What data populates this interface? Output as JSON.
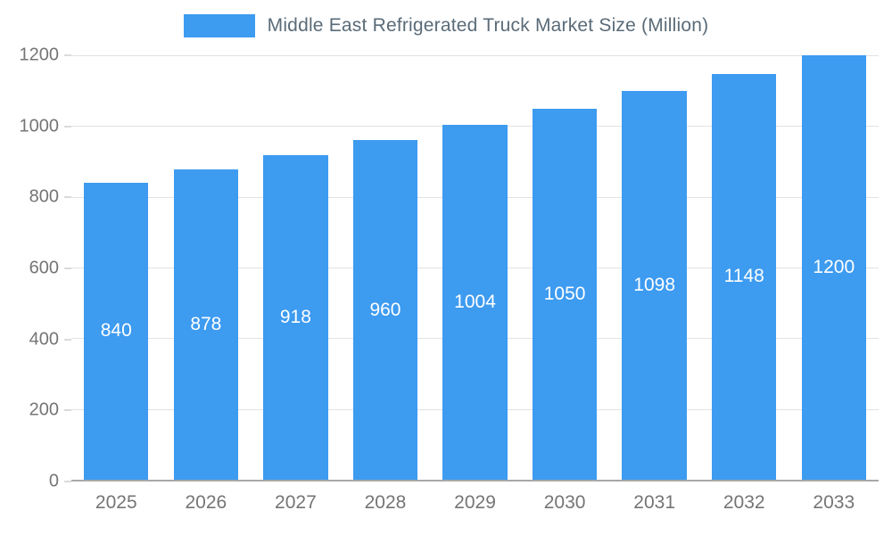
{
  "chart_data": {
    "type": "bar",
    "title": "Middle East Refrigerated Truck Market Size (Million)",
    "categories": [
      "2025",
      "2026",
      "2027",
      "2028",
      "2029",
      "2030",
      "2031",
      "2032",
      "2033"
    ],
    "values": [
      840,
      878,
      918,
      960,
      1004,
      1050,
      1098,
      1148,
      1200
    ],
    "xlabel": "",
    "ylabel": "",
    "ylim": [
      0,
      1200
    ],
    "y_ticks": [
      0,
      200,
      400,
      600,
      800,
      1000,
      1200
    ],
    "grid": true,
    "legend_position": "top",
    "colors": {
      "bar": "#3D9BF0",
      "bar_value_label": "#ffffff",
      "legend_text": "#5a6b78",
      "axis_text": "#757575",
      "gridline": "#e2e2e2"
    }
  }
}
